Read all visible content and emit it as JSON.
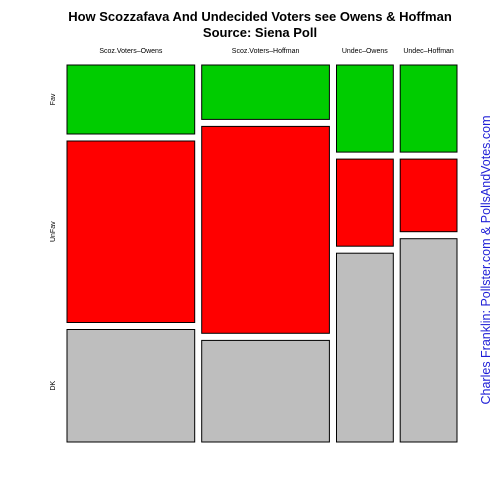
{
  "chart_data": {
    "type": "mosaic",
    "title": "How Scozzafava And Undecided Voters see Owens & Hoffman",
    "subtitle": "Source: Siena Poll",
    "credit": "Charles Franklin: Pollster.com & PollsAndVotes.com",
    "columns": [
      "Scoz.Voters–Owens",
      "Scoz.Voters–Hoffman",
      "Undec–Owens",
      "Undec–Hoffman"
    ],
    "column_shares": [
      0.36,
      0.36,
      0.16,
      0.16
    ],
    "rows": [
      "Fav",
      "UnFav",
      "DK"
    ],
    "row_colors": {
      "Fav": "#00cc00",
      "UnFav": "#ff0000",
      "DK": "#bebebe"
    },
    "series": [
      {
        "name": "Fav",
        "values": [
          0.19,
          0.15,
          0.24,
          0.24
        ]
      },
      {
        "name": "UnFav",
        "values": [
          0.5,
          0.57,
          0.24,
          0.2
        ]
      },
      {
        "name": "DK",
        "values": [
          0.31,
          0.28,
          0.52,
          0.56
        ]
      }
    ]
  }
}
